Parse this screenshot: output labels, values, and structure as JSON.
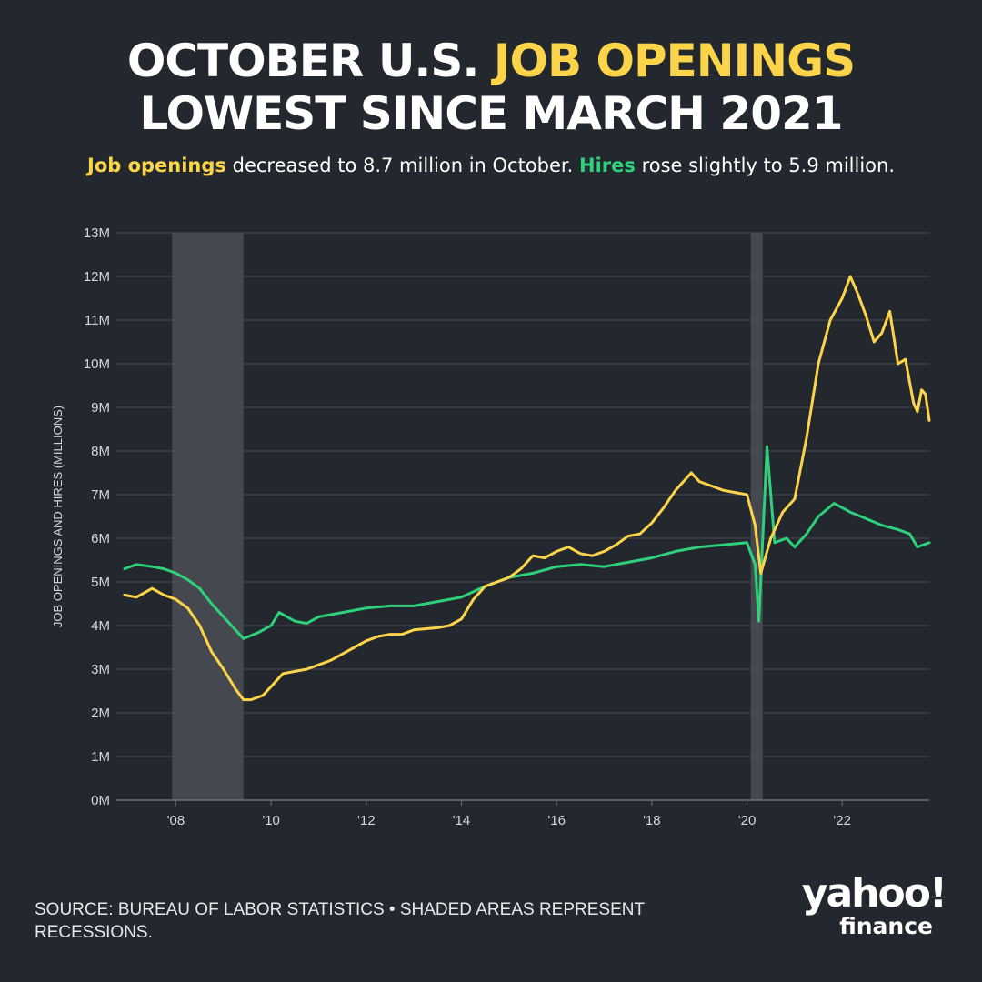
{
  "header": {
    "title_part1": "OCTOBER U.S.",
    "title_highlight": "JOB OPENINGS",
    "title_line2": "LOWEST SINCE MARCH 2021",
    "subtitle_openings": "Job openings",
    "subtitle_mid": "decreased to 8.7 million in October.",
    "subtitle_hires": "Hires",
    "subtitle_end": "rose slightly to 5.9 million."
  },
  "footer": {
    "source": "SOURCE: BUREAU OF LABOR STATISTICS • SHADED AREAS REPRESENT RECESSIONS.",
    "logo_line1": "yahoo!",
    "logo_line2": "finance"
  },
  "chart_data": {
    "type": "line",
    "title": "",
    "xlabel": "",
    "ylabel": "JOB OPENINGS AND HIRES (MILLIONS)",
    "xlim": [
      2006.75,
      2023.83
    ],
    "ylim": [
      0,
      13
    ],
    "y_ticks": [
      0,
      1,
      2,
      3,
      4,
      5,
      6,
      7,
      8,
      9,
      10,
      11,
      12,
      13
    ],
    "y_tick_labels": [
      "0M",
      "1M",
      "2M",
      "3M",
      "4M",
      "5M",
      "6M",
      "7M",
      "8M",
      "9M",
      "10M",
      "11M",
      "12M",
      "13M"
    ],
    "x_ticks": [
      2008,
      2010,
      2012,
      2014,
      2016,
      2018,
      2020,
      2022
    ],
    "x_tick_labels": [
      "'08",
      "'10",
      "'12",
      "'14",
      "'16",
      "'18",
      "'20",
      "'22"
    ],
    "grid": true,
    "recessions": [
      [
        2007.92,
        2009.42
      ],
      [
        2020.08,
        2020.33
      ]
    ],
    "colors": {
      "openings": "#fbd449",
      "hires": "#2fd07c",
      "recession": "#45484e",
      "grid": "#4a4d53",
      "background": "#23272e"
    },
    "series": [
      {
        "name": "Job openings",
        "points": [
          [
            2006.92,
            4.7
          ],
          [
            2007.17,
            4.65
          ],
          [
            2007.5,
            4.85
          ],
          [
            2007.75,
            4.7
          ],
          [
            2008.0,
            4.6
          ],
          [
            2008.25,
            4.4
          ],
          [
            2008.5,
            4.0
          ],
          [
            2008.75,
            3.4
          ],
          [
            2009.0,
            3.0
          ],
          [
            2009.25,
            2.55
          ],
          [
            2009.42,
            2.3
          ],
          [
            2009.58,
            2.3
          ],
          [
            2009.83,
            2.4
          ],
          [
            2010.0,
            2.6
          ],
          [
            2010.25,
            2.9
          ],
          [
            2010.5,
            2.95
          ],
          [
            2010.75,
            3.0
          ],
          [
            2011.0,
            3.1
          ],
          [
            2011.25,
            3.2
          ],
          [
            2011.5,
            3.35
          ],
          [
            2011.75,
            3.5
          ],
          [
            2012.0,
            3.65
          ],
          [
            2012.25,
            3.75
          ],
          [
            2012.5,
            3.8
          ],
          [
            2012.75,
            3.8
          ],
          [
            2013.0,
            3.9
          ],
          [
            2013.5,
            3.95
          ],
          [
            2013.75,
            4.0
          ],
          [
            2014.0,
            4.15
          ],
          [
            2014.25,
            4.6
          ],
          [
            2014.5,
            4.9
          ],
          [
            2014.75,
            5.0
          ],
          [
            2015.0,
            5.1
          ],
          [
            2015.25,
            5.3
          ],
          [
            2015.5,
            5.6
          ],
          [
            2015.75,
            5.55
          ],
          [
            2016.0,
            5.7
          ],
          [
            2016.25,
            5.8
          ],
          [
            2016.5,
            5.65
          ],
          [
            2016.75,
            5.6
          ],
          [
            2017.0,
            5.7
          ],
          [
            2017.25,
            5.85
          ],
          [
            2017.5,
            6.05
          ],
          [
            2017.75,
            6.1
          ],
          [
            2018.0,
            6.35
          ],
          [
            2018.25,
            6.7
          ],
          [
            2018.5,
            7.1
          ],
          [
            2018.83,
            7.5
          ],
          [
            2019.0,
            7.3
          ],
          [
            2019.25,
            7.2
          ],
          [
            2019.5,
            7.1
          ],
          [
            2019.75,
            7.05
          ],
          [
            2020.0,
            7.0
          ],
          [
            2020.17,
            6.3
          ],
          [
            2020.29,
            5.2
          ],
          [
            2020.5,
            6.0
          ],
          [
            2020.75,
            6.6
          ],
          [
            2021.0,
            6.9
          ],
          [
            2021.25,
            8.3
          ],
          [
            2021.5,
            10.0
          ],
          [
            2021.75,
            11.0
          ],
          [
            2022.0,
            11.5
          ],
          [
            2022.17,
            12.0
          ],
          [
            2022.33,
            11.6
          ],
          [
            2022.5,
            11.1
          ],
          [
            2022.67,
            10.5
          ],
          [
            2022.83,
            10.7
          ],
          [
            2023.0,
            11.2
          ],
          [
            2023.17,
            10.0
          ],
          [
            2023.33,
            10.1
          ],
          [
            2023.5,
            9.1
          ],
          [
            2023.58,
            8.9
          ],
          [
            2023.67,
            9.4
          ],
          [
            2023.75,
            9.3
          ],
          [
            2023.83,
            8.7
          ]
        ]
      },
      {
        "name": "Hires",
        "points": [
          [
            2006.92,
            5.3
          ],
          [
            2007.17,
            5.4
          ],
          [
            2007.5,
            5.35
          ],
          [
            2007.75,
            5.3
          ],
          [
            2008.0,
            5.2
          ],
          [
            2008.25,
            5.05
          ],
          [
            2008.5,
            4.85
          ],
          [
            2008.75,
            4.5
          ],
          [
            2009.0,
            4.2
          ],
          [
            2009.25,
            3.9
          ],
          [
            2009.42,
            3.7
          ],
          [
            2009.75,
            3.85
          ],
          [
            2010.0,
            4.0
          ],
          [
            2010.17,
            4.3
          ],
          [
            2010.5,
            4.1
          ],
          [
            2010.75,
            4.05
          ],
          [
            2011.0,
            4.2
          ],
          [
            2011.5,
            4.3
          ],
          [
            2012.0,
            4.4
          ],
          [
            2012.5,
            4.45
          ],
          [
            2013.0,
            4.45
          ],
          [
            2013.5,
            4.55
          ],
          [
            2014.0,
            4.65
          ],
          [
            2014.5,
            4.9
          ],
          [
            2015.0,
            5.1
          ],
          [
            2015.5,
            5.2
          ],
          [
            2016.0,
            5.35
          ],
          [
            2016.5,
            5.4
          ],
          [
            2017.0,
            5.35
          ],
          [
            2017.5,
            5.45
          ],
          [
            2018.0,
            5.55
          ],
          [
            2018.5,
            5.7
          ],
          [
            2019.0,
            5.8
          ],
          [
            2019.5,
            5.85
          ],
          [
            2020.0,
            5.9
          ],
          [
            2020.17,
            5.4
          ],
          [
            2020.25,
            4.1
          ],
          [
            2020.42,
            8.1
          ],
          [
            2020.58,
            5.9
          ],
          [
            2020.83,
            6.0
          ],
          [
            2021.0,
            5.8
          ],
          [
            2021.25,
            6.1
          ],
          [
            2021.5,
            6.5
          ],
          [
            2021.83,
            6.8
          ],
          [
            2022.17,
            6.6
          ],
          [
            2022.5,
            6.45
          ],
          [
            2022.83,
            6.3
          ],
          [
            2023.17,
            6.2
          ],
          [
            2023.42,
            6.1
          ],
          [
            2023.58,
            5.8
          ],
          [
            2023.83,
            5.9
          ]
        ]
      }
    ]
  }
}
